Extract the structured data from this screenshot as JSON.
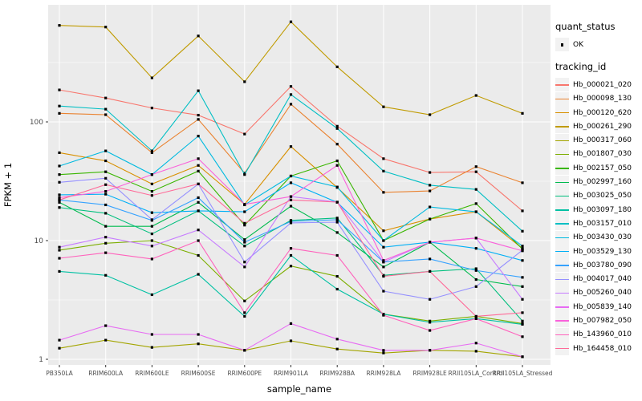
{
  "chart_data": {
    "type": "line",
    "title": "",
    "xlabel": "sample_name",
    "ylabel": "FPKM + 1",
    "y_scale": "log10",
    "ylim": [
      1,
      900
    ],
    "y_ticks": [
      1,
      10,
      100
    ],
    "y_minor_ticks": [
      3.1623,
      31.623,
      316.23
    ],
    "grid": "on",
    "legend_position": "right",
    "panel_bg": "#EBEBEB",
    "grid_color": "#FFFFFF",
    "key_bg": "#F2F2F2",
    "tick_text_color": "#4D4D4D",
    "point_color": "#000000",
    "categories": [
      "PB350LA",
      "RRIM600LA",
      "RRIM600LE",
      "RRIM600SE",
      "RRIM600PE",
      "RRIM901LA",
      "RRIM928BA",
      "RRIM928LA",
      "RRIM928LE",
      "RRII105LA_Control",
      "RRII105LA_Stressed"
    ],
    "legend": {
      "quant_status_title": "quant_status",
      "quant_status_items": [
        {
          "label": "OK"
        }
      ],
      "tracking_title": "tracking_id"
    },
    "series": [
      {
        "id": "Hb_000021_020",
        "color": "#F8766D",
        "values": [
          186,
          159,
          131,
          114,
          79,
          199,
          92,
          49,
          37.5,
          38,
          17.8
        ]
      },
      {
        "id": "Hb_000098_130",
        "color": "#EA8331",
        "values": [
          118,
          115,
          55,
          105,
          37,
          141,
          65,
          25.5,
          26.2,
          42,
          30.7
        ]
      },
      {
        "id": "Hb_000120_620",
        "color": "#D89000",
        "values": [
          55,
          47,
          30,
          43,
          20.2,
          62,
          28,
          12.1,
          15.2,
          17.5,
          8.6
        ]
      },
      {
        "id": "Hb_000261_290",
        "color": "#C09B00",
        "values": [
          650,
          630,
          235,
          530,
          218,
          697,
          291,
          134,
          115,
          167,
          118
        ]
      },
      {
        "id": "Hb_000317_060",
        "color": "#A3A500",
        "values": [
          1.24,
          1.45,
          1.26,
          1.35,
          1.19,
          1.43,
          1.22,
          1.13,
          1.19,
          1.17,
          1.05
        ]
      },
      {
        "id": "Hb_001807_030",
        "color": "#7CAE00",
        "values": [
          8.3,
          9.5,
          10,
          7.5,
          3.1,
          6.1,
          5.0,
          2.4,
          2.1,
          2.3,
          2.0
        ]
      },
      {
        "id": "Hb_002157_050",
        "color": "#39B600",
        "values": [
          36,
          38,
          26,
          38.5,
          13.5,
          35,
          47,
          10,
          15.2,
          20.5,
          8.5
        ]
      },
      {
        "id": "Hb_002997_160",
        "color": "#00BB4E",
        "values": [
          21,
          13.2,
          13.2,
          21,
          10.2,
          19.5,
          11.7,
          6.0,
          9.7,
          4.7,
          4.1
        ]
      },
      {
        "id": "Hb_003025_050",
        "color": "#00BF7D",
        "values": [
          19,
          17,
          11.4,
          17.8,
          9.0,
          14.8,
          15.5,
          5.1,
          5.5,
          5.8,
          2.1
        ]
      },
      {
        "id": "Hb_003097_180",
        "color": "#00C1A3",
        "values": [
          5.5,
          5.1,
          3.5,
          5.2,
          2.3,
          7.5,
          3.9,
          2.4,
          2.05,
          2.2,
          1.97
        ]
      },
      {
        "id": "Hb_003157_010",
        "color": "#00BFC4",
        "values": [
          136,
          128,
          57,
          183,
          36,
          170,
          88,
          38.5,
          29.3,
          27,
          12
        ]
      },
      {
        "id": "Hb_003430_030",
        "color": "#00BAE0",
        "values": [
          42.5,
          57,
          36,
          76,
          20,
          35,
          28.3,
          10,
          19.2,
          17.5,
          9.0
        ]
      },
      {
        "id": "Hb_003529_130",
        "color": "#00B0F6",
        "values": [
          24.3,
          24.6,
          17.2,
          17.8,
          17.5,
          30.7,
          21,
          8.8,
          9.7,
          8.6,
          6.8
        ]
      },
      {
        "id": "Hb_003780_090",
        "color": "#35A2FF",
        "values": [
          22,
          20,
          14.8,
          23,
          9.7,
          14.5,
          15,
          6.6,
          7.0,
          5.6,
          4.9
        ]
      },
      {
        "id": "Hb_004017_040",
        "color": "#9590FF",
        "values": [
          31,
          33.5,
          15,
          30,
          6.6,
          14.1,
          14.3,
          3.75,
          3.2,
          4.1,
          8.3
        ]
      },
      {
        "id": "Hb_005260_040",
        "color": "#C77CFF",
        "values": [
          8.8,
          10.7,
          9.0,
          12.3,
          6.0,
          23.5,
          21.1,
          6.6,
          9.7,
          10.5,
          3.2
        ]
      },
      {
        "id": "Hb_005839_140",
        "color": "#E76BF3",
        "values": [
          1.45,
          1.92,
          1.62,
          1.62,
          1.19,
          2.0,
          1.48,
          1.19,
          1.19,
          1.37,
          1.05
        ]
      },
      {
        "id": "Hb_007982_050",
        "color": "#FA62DB",
        "values": [
          23,
          26,
          36,
          49,
          20.2,
          23.5,
          43,
          6.8,
          9.7,
          10.5,
          8.2
        ]
      },
      {
        "id": "Hb_143960_010",
        "color": "#FF62BC",
        "values": [
          7.1,
          7.9,
          7.0,
          10,
          2.47,
          8.6,
          7.5,
          2.35,
          1.75,
          2.2,
          1.55
        ]
      },
      {
        "id": "Hb_164458_010",
        "color": "#FF6A98",
        "values": [
          22,
          29.6,
          24,
          30,
          14,
          22,
          21.1,
          5.0,
          5.5,
          2.3,
          2.47
        ]
      }
    ]
  }
}
